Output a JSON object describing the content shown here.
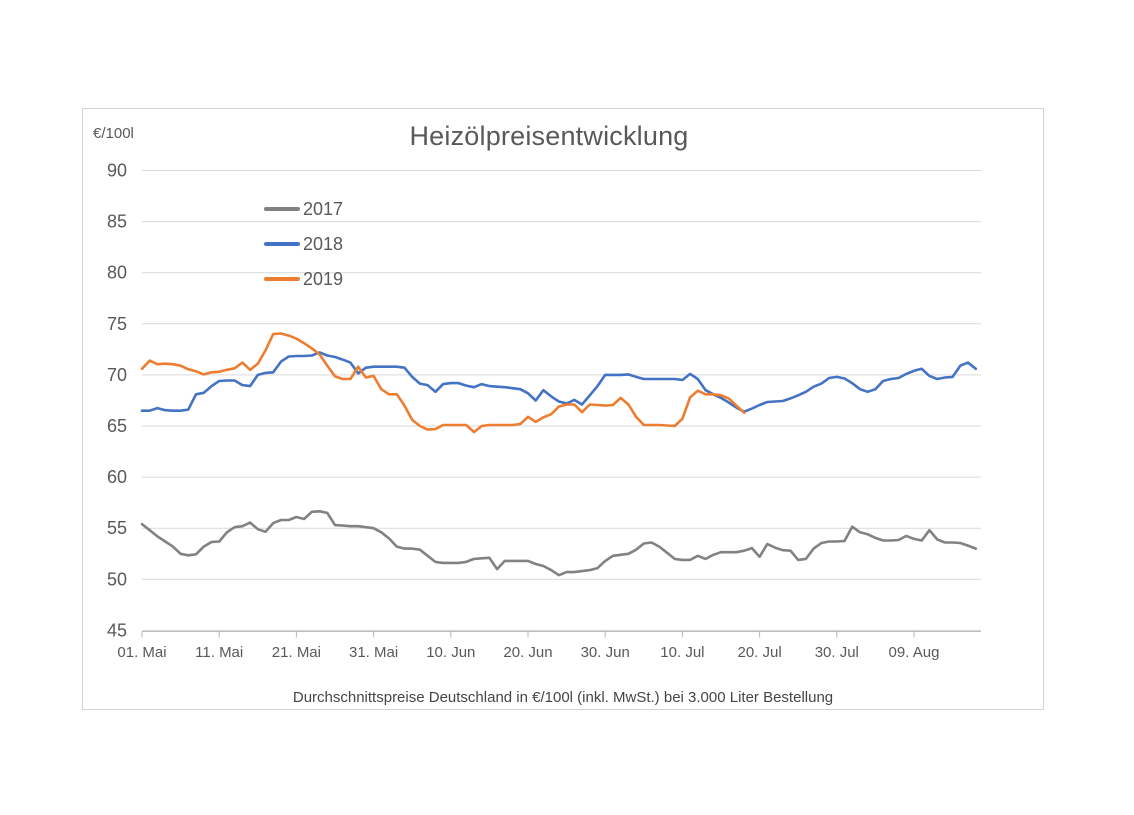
{
  "ui": {
    "title": "Heizölpreisentwicklung",
    "unit_label": "€/100l",
    "caption": "Durchschnittspreise Deutschland in €/100l (inkl. MwSt.) bei 3.000 Liter Bestellung",
    "legend": [
      {
        "label": "2017",
        "color": "#828282"
      },
      {
        "label": "2018",
        "color": "#4472c4"
      },
      {
        "label": "2019",
        "color": "#ed7d31"
      }
    ],
    "colors": {
      "gridline": "#d9d9d9",
      "axis_line": "#b5b5b5",
      "axis_text": "#595959",
      "panel_border": "#d4d4d4"
    }
  },
  "chart_data": {
    "type": "line",
    "title": "Heizölpreisentwicklung",
    "ylabel": "€/100l",
    "caption": "Durchschnittspreise Deutschland in €/100l (inkl. MwSt.) bei 3.000 Liter Bestellung",
    "grid": true,
    "legend_position": "inside-top-left",
    "y_axis": {
      "min": 45,
      "max": 90,
      "step": 5,
      "ticks": [
        90,
        85,
        80,
        75,
        70,
        65,
        60,
        55,
        50,
        45
      ],
      "tick_labels": [
        "90",
        "85",
        "80",
        "75",
        "70",
        "65",
        "60",
        "55",
        "50",
        "45"
      ]
    },
    "x_axis": {
      "sampling": "daily values starting 01. Mai (day 0)",
      "tick_labels": [
        "01. Mai",
        "11. Mai",
        "21. Mai",
        "31. Mai",
        "10. Jun",
        "20. Jun",
        "30. Jun",
        "10. Jul",
        "20. Jul",
        "30. Jul",
        "09. Aug"
      ],
      "tick_days": [
        0,
        10,
        20,
        30,
        40,
        50,
        60,
        70,
        80,
        90,
        100
      ],
      "total_days": 109
    },
    "series": [
      {
        "name": "2017",
        "color": "#828282",
        "values": [
          55.4,
          54.8,
          54.2,
          53.7,
          53.2,
          52.5,
          52.35,
          52.45,
          53.2,
          53.65,
          53.7,
          54.6,
          55.1,
          55.2,
          55.55,
          54.9,
          54.65,
          55.5,
          55.8,
          55.8,
          56.1,
          55.9,
          56.6,
          56.65,
          56.5,
          55.3,
          55.25,
          55.2,
          55.2,
          55.1,
          55.0,
          54.6,
          54.0,
          53.2,
          53.0,
          53.0,
          52.9,
          52.3,
          51.7,
          51.6,
          51.6,
          51.6,
          51.7,
          52.0,
          52.05,
          52.1,
          51.0,
          51.8,
          51.8,
          51.8,
          51.8,
          51.5,
          51.3,
          50.9,
          50.4,
          50.7,
          50.7,
          50.8,
          50.9,
          51.1,
          51.8,
          52.3,
          52.4,
          52.5,
          52.9,
          53.5,
          53.6,
          53.2,
          52.6,
          52.0,
          51.9,
          51.9,
          52.3,
          52.0,
          52.4,
          52.65,
          52.65,
          52.65,
          52.8,
          53.05,
          52.2,
          53.45,
          53.1,
          52.85,
          52.8,
          51.9,
          52.0,
          53.0,
          53.55,
          53.7,
          53.7,
          53.75,
          55.15,
          54.6,
          54.4,
          54.05,
          53.8,
          53.8,
          53.85,
          54.25,
          53.95,
          53.8,
          54.8,
          53.9,
          53.6,
          53.6,
          53.55,
          53.3,
          53.0
        ]
      },
      {
        "name": "2018",
        "color": "#4472c4",
        "values": [
          66.5,
          66.5,
          66.75,
          66.55,
          66.5,
          66.5,
          66.6,
          68.1,
          68.25,
          68.9,
          69.4,
          69.45,
          69.45,
          69.0,
          68.9,
          70.0,
          70.2,
          70.25,
          71.3,
          71.8,
          71.85,
          71.85,
          71.9,
          72.2,
          71.9,
          71.75,
          71.5,
          71.2,
          70.15,
          70.7,
          70.8,
          70.8,
          70.8,
          70.8,
          70.7,
          69.8,
          69.15,
          69.0,
          68.35,
          69.1,
          69.2,
          69.2,
          68.95,
          68.8,
          69.1,
          68.9,
          68.85,
          68.8,
          68.7,
          68.6,
          68.2,
          67.5,
          68.5,
          67.9,
          67.4,
          67.2,
          67.55,
          67.1,
          68.0,
          68.9,
          70.0,
          70.0,
          70.0,
          70.05,
          69.8,
          69.6,
          69.6,
          69.6,
          69.6,
          69.6,
          69.5,
          70.1,
          69.6,
          68.5,
          68.1,
          67.75,
          67.3,
          66.8,
          66.4,
          66.7,
          67.05,
          67.35,
          67.4,
          67.45,
          67.7,
          68.0,
          68.35,
          68.85,
          69.15,
          69.7,
          69.8,
          69.65,
          69.2,
          68.6,
          68.35,
          68.6,
          69.4,
          69.6,
          69.7,
          70.1,
          70.4,
          70.6,
          69.9,
          69.6,
          69.75,
          69.8,
          70.9,
          71.2,
          70.6
        ]
      },
      {
        "name": "2019",
        "color": "#ed7d31",
        "values": [
          70.6,
          71.4,
          71.05,
          71.1,
          71.05,
          70.9,
          70.55,
          70.35,
          70.05,
          70.25,
          70.3,
          70.5,
          70.65,
          71.2,
          70.5,
          71.1,
          72.4,
          74.0,
          74.05,
          73.85,
          73.55,
          73.1,
          72.6,
          72.0,
          70.9,
          69.85,
          69.6,
          69.6,
          70.8,
          69.75,
          69.9,
          68.6,
          68.1,
          68.1,
          67.0,
          65.6,
          65.0,
          64.65,
          64.7,
          65.1,
          65.1,
          65.1,
          65.1,
          64.4,
          65.0,
          65.1,
          65.1,
          65.1,
          65.1,
          65.2,
          65.9,
          65.4,
          65.85,
          66.15,
          66.9,
          67.1,
          67.1,
          66.35,
          67.1,
          67.05,
          67.0,
          67.05,
          67.75,
          67.1,
          65.9,
          65.1,
          65.1,
          65.1,
          65.05,
          65.0,
          65.7,
          67.8,
          68.45,
          68.1,
          68.1,
          68.0,
          67.7,
          67.0,
          66.3
        ]
      }
    ]
  }
}
